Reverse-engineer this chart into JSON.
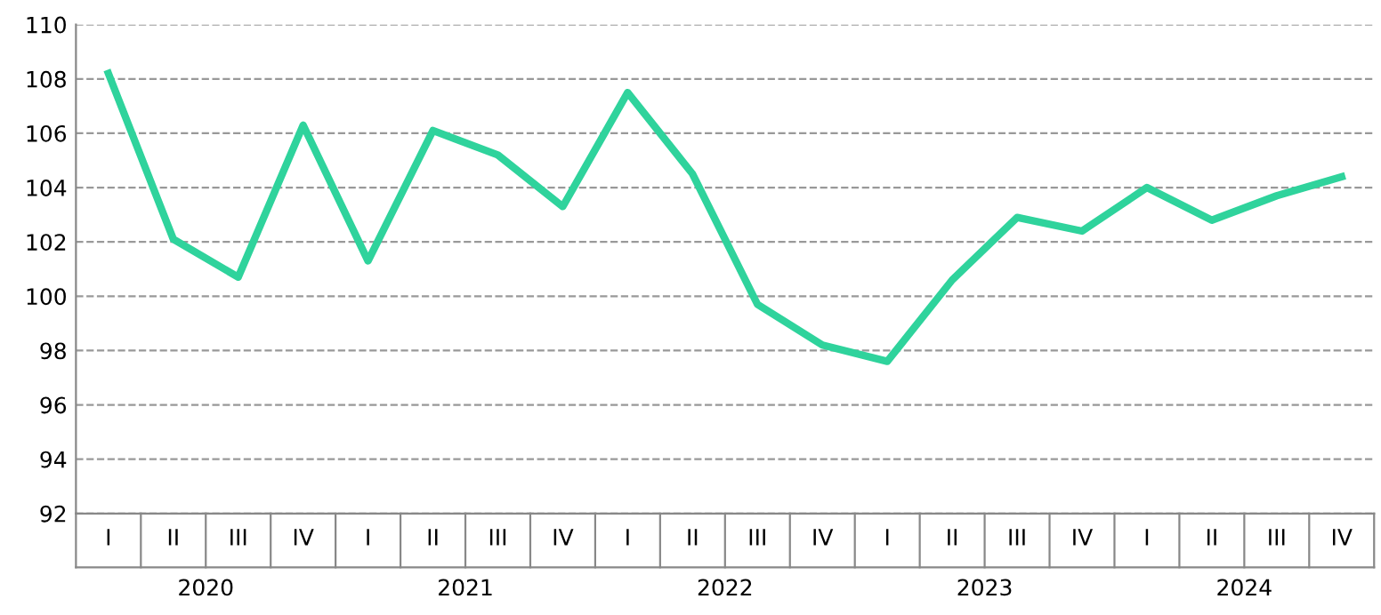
{
  "chart_data": {
    "type": "line",
    "categories": [
      "I",
      "II",
      "III",
      "IV",
      "I",
      "II",
      "III",
      "IV",
      "I",
      "II",
      "III",
      "IV",
      "I",
      "II",
      "III",
      "IV",
      "I",
      "II",
      "III",
      "IV"
    ],
    "series": [
      {
        "color": "#2fd39c",
        "values": [
          108.2,
          102.1,
          100.7,
          106.3,
          101.3,
          106.1,
          105.2,
          103.3,
          107.5,
          104.5,
          99.7,
          98.2,
          97.6,
          100.6,
          102.9,
          102.4,
          104.0,
          102.8,
          103.7,
          104.4
        ]
      }
    ],
    "annotations": [
      "2020",
      "2021",
      "2022",
      "2023",
      "2024"
    ],
    "ylim": [
      92,
      110
    ],
    "yticks": [
      92,
      94,
      96,
      98,
      100,
      102,
      104,
      106,
      108,
      110
    ],
    "grid": "y",
    "legend": false,
    "line_style": "solid",
    "marker": "none"
  }
}
